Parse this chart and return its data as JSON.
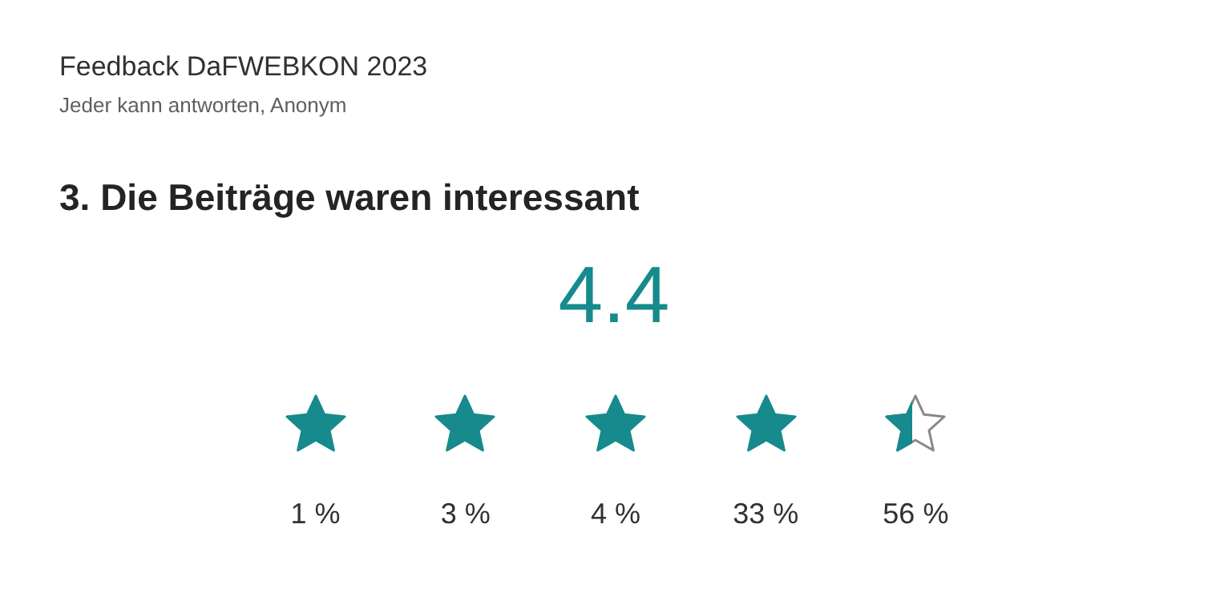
{
  "chart_data": {
    "type": "other",
    "title": "Feedback DaFWEBKON 2023",
    "subtitle": "Jeder kann antworten, Anonym",
    "annotations": [
      "3. Die Beiträge waren interessant",
      "4.4"
    ],
    "categories": [
      null,
      null,
      null,
      null,
      null
    ],
    "values": [
      1,
      3,
      4,
      33,
      56
    ],
    "value_labels": [
      "1 %",
      "3 %",
      "4 %",
      "33 %",
      "56 %"
    ],
    "color": "#168a8c"
  }
}
